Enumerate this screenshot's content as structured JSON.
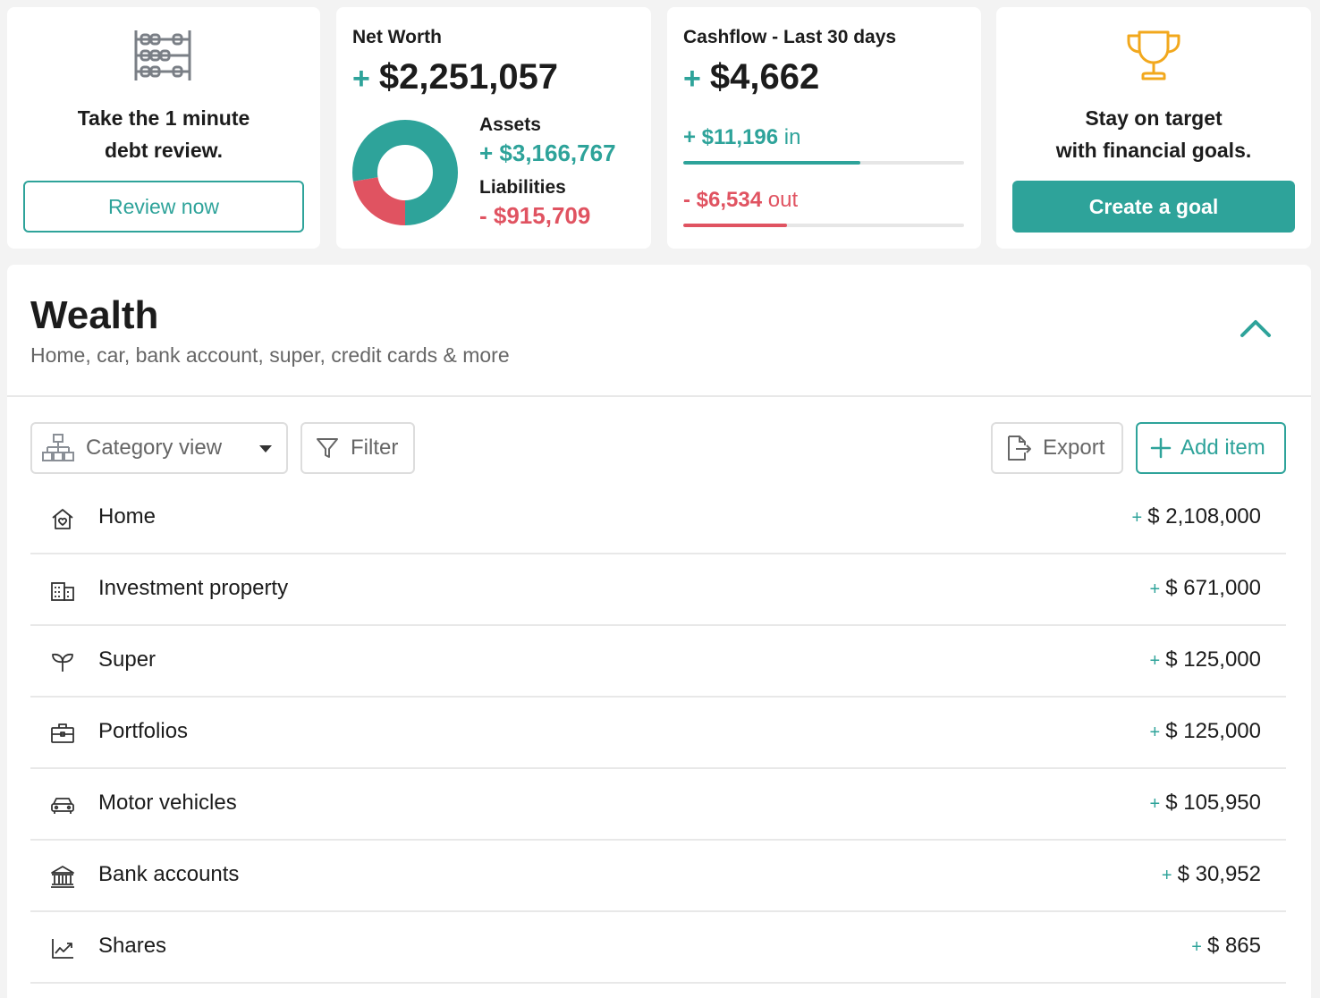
{
  "debt_card": {
    "line1": "Take the 1 minute",
    "line2": "debt review.",
    "button": "Review now",
    "icon": "abacus-icon"
  },
  "net_worth": {
    "title": "Net Worth",
    "sign": "+",
    "value": "$2,251,057",
    "assets_label": "Assets",
    "assets_value": "+ $3,166,767",
    "liabilities_label": "Liabilities",
    "liabilities_value": "- $915,709",
    "assets_amount": 3166767,
    "liabilities_amount": 915709,
    "colors": {
      "assets": "#2ea39a",
      "liabilities": "#e05361"
    }
  },
  "cashflow": {
    "title": "Cashflow - Last 30 days",
    "sign": "+",
    "value": "$4,662",
    "in_amount": "+ $11,196",
    "in_suffix": "in",
    "in_fraction": 0.63,
    "out_amount": "- $6,534",
    "out_suffix": "out",
    "out_fraction": 0.37
  },
  "goal_card": {
    "line1": "Stay on target",
    "line2": "with financial goals.",
    "button": "Create a goal",
    "icon": "trophy-icon"
  },
  "wealth": {
    "title": "Wealth",
    "subtitle": "Home, car, bank account, super, credit cards & more",
    "toolbar": {
      "category_view": "Category view",
      "filter": "Filter",
      "export": "Export",
      "add_item": "Add item"
    },
    "rows": [
      {
        "icon": "home-icon",
        "name": "Home",
        "sign": "+",
        "value": "$ 2,108,000"
      },
      {
        "icon": "building-icon",
        "name": "Investment property",
        "sign": "+",
        "value": "$ 671,000"
      },
      {
        "icon": "sprout-icon",
        "name": "Super",
        "sign": "+",
        "value": "$ 125,000"
      },
      {
        "icon": "briefcase-icon",
        "name": "Portfolios",
        "sign": "+",
        "value": "$ 125,000"
      },
      {
        "icon": "car-icon",
        "name": "Motor vehicles",
        "sign": "+",
        "value": "$ 105,950"
      },
      {
        "icon": "bank-icon",
        "name": "Bank accounts",
        "sign": "+",
        "value": "$ 30,952"
      },
      {
        "icon": "chart-line-icon",
        "name": "Shares",
        "sign": "+",
        "value": "$ 865"
      }
    ]
  },
  "colors": {
    "accent": "#2ea39a",
    "negative": "#e05361",
    "goal_icon": "#f2a81d"
  }
}
